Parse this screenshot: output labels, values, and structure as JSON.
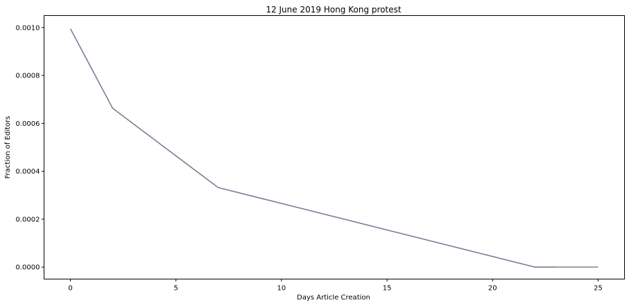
{
  "chart_data": {
    "type": "line",
    "title": "12 June 2019 Hong Kong protest",
    "xlabel": "Days Article Creation",
    "ylabel": "Fraction of Editors",
    "xlim": [
      -1.25,
      26.25
    ],
    "ylim": [
      -5e-05,
      0.00105
    ],
    "xticks": [
      0,
      5,
      10,
      15,
      20,
      25
    ],
    "xtick_labels": [
      "0",
      "5",
      "10",
      "15",
      "20",
      "25"
    ],
    "yticks": [
      0.0,
      0.0002,
      0.0004,
      0.0006,
      0.0008,
      0.001
    ],
    "ytick_labels": [
      "0.0000",
      "0.0002",
      "0.0004",
      "0.0006",
      "0.0008",
      "0.0010"
    ],
    "grid": false,
    "series": [
      {
        "color": "#8c7b80",
        "x": [
          0,
          2,
          7,
          22,
          23,
          24,
          25
        ],
        "y": [
          0.000995,
          0.000663,
          0.000332,
          0.0,
          0.0,
          0.0,
          0.0
        ]
      },
      {
        "color": "#7f7f9a",
        "x": [
          0,
          2,
          7,
          22,
          23
        ],
        "y": [
          0.000995,
          0.000663,
          0.000332,
          0.0,
          0.0
        ]
      }
    ]
  }
}
